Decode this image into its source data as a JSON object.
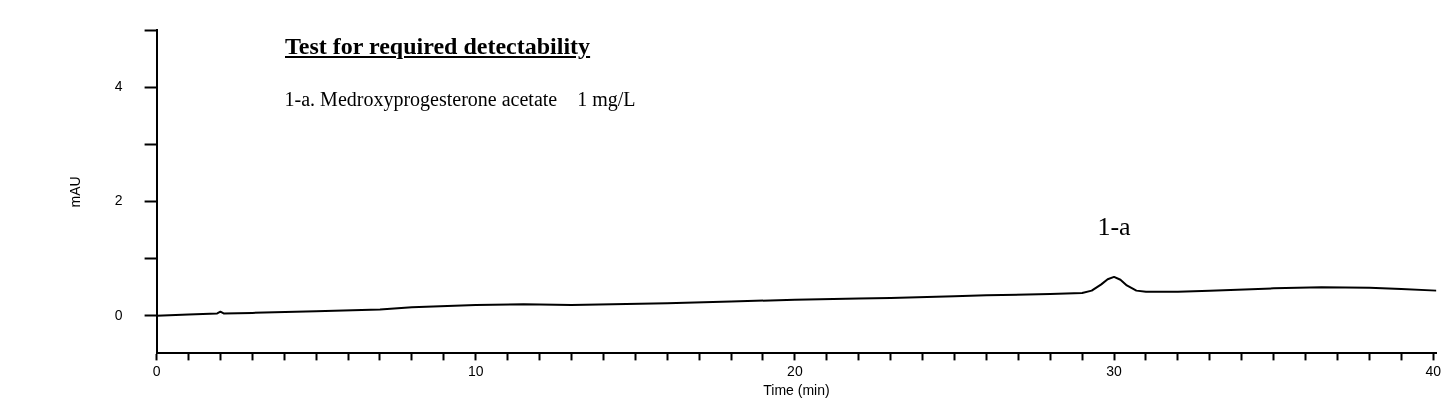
{
  "chart_data": {
    "type": "line",
    "title": "Test for required detectability",
    "xlabel": "Time (min)",
    "ylabel": "mAU",
    "annotations": [
      "1-a. Medroxyprogesterone acetate    1 mg/L",
      {
        "text": "1-a",
        "x": 30,
        "y": 0.68
      }
    ],
    "series": [
      {
        "color": "#000000",
        "x": [
          0,
          1,
          1.9,
          2,
          2.1,
          3,
          5,
          7,
          8,
          10,
          11.5,
          13,
          16,
          18,
          20,
          22,
          23,
          25,
          26,
          28,
          29,
          29.3,
          29.6,
          29.8,
          30,
          30.2,
          30.4,
          30.7,
          31,
          32,
          33,
          35,
          36.5,
          38,
          39,
          40.1
        ],
        "values": [
          0,
          0.02,
          0.04,
          0.07,
          0.04,
          0.05,
          0.08,
          0.11,
          0.15,
          0.19,
          0.2,
          0.19,
          0.22,
          0.25,
          0.28,
          0.3,
          0.31,
          0.34,
          0.36,
          0.38,
          0.4,
          0.44,
          0.55,
          0.64,
          0.68,
          0.63,
          0.53,
          0.44,
          0.42,
          0.42,
          0.44,
          0.48,
          0.5,
          0.49,
          0.47,
          0.44
        ]
      }
    ],
    "marker": "none",
    "line_style": "solid",
    "grid": false,
    "legend": false,
    "xlim": [
      0,
      40.1
    ],
    "ylim": [
      -0.66,
      5
    ],
    "xticks": [
      0,
      {
        "value": 1,
        "label": null
      },
      {
        "value": 2,
        "label": null
      },
      {
        "value": 3,
        "label": null
      },
      {
        "value": 4,
        "label": null
      },
      {
        "value": 5,
        "label": null
      },
      {
        "value": 6,
        "label": null
      },
      {
        "value": 7,
        "label": null
      },
      {
        "value": 8,
        "label": null
      },
      {
        "value": 9,
        "label": null
      },
      10,
      {
        "value": 11,
        "label": null
      },
      {
        "value": 12,
        "label": null
      },
      {
        "value": 13,
        "label": null
      },
      {
        "value": 14,
        "label": null
      },
      {
        "value": 15,
        "label": null
      },
      {
        "value": 16,
        "label": null
      },
      {
        "value": 17,
        "label": null
      },
      {
        "value": 18,
        "label": null
      },
      {
        "value": 19,
        "label": null
      },
      20,
      {
        "value": 21,
        "label": null
      },
      {
        "value": 22,
        "label": null
      },
      {
        "value": 23,
        "label": null
      },
      {
        "value": 24,
        "label": null
      },
      {
        "value": 25,
        "label": null
      },
      {
        "value": 26,
        "label": null
      },
      {
        "value": 27,
        "label": null
      },
      {
        "value": 28,
        "label": null
      },
      {
        "value": 29,
        "label": null
      },
      30,
      {
        "value": 31,
        "label": null
      },
      {
        "value": 32,
        "label": null
      },
      {
        "value": 33,
        "label": null
      },
      {
        "value": 34,
        "label": null
      },
      {
        "value": 35,
        "label": null
      },
      {
        "value": 36,
        "label": null
      },
      {
        "value": 37,
        "label": null
      },
      {
        "value": 38,
        "label": null
      },
      {
        "value": 39,
        "label": null
      },
      40
    ],
    "yticks": [
      0,
      {
        "value": 1,
        "label": null
      },
      2,
      {
        "value": 3,
        "label": null
      },
      4,
      {
        "value": 5,
        "label": null
      }
    ]
  }
}
